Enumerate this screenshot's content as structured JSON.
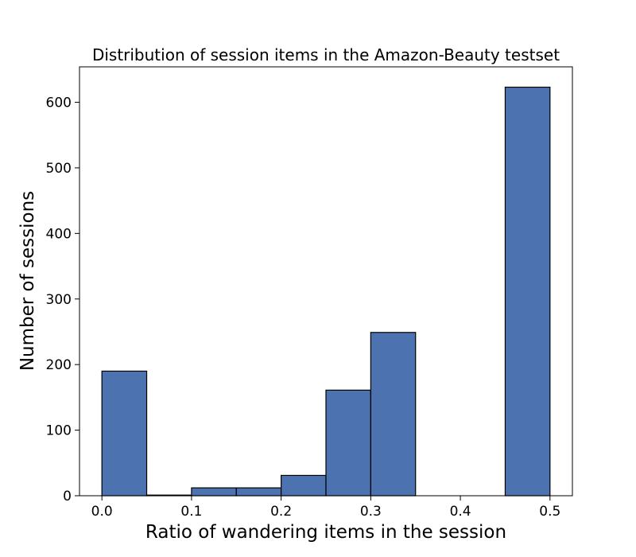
{
  "chart_data": {
    "type": "bar",
    "title": "Distribution of session items in the Amazon-Beauty testset",
    "xlabel": "Ratio of wandering items in the session",
    "ylabel": "Number of sessions",
    "bins": [
      {
        "x0": 0.0,
        "x1": 0.05,
        "value": 190
      },
      {
        "x0": 0.05,
        "x1": 0.1,
        "value": 1
      },
      {
        "x0": 0.1,
        "x1": 0.15,
        "value": 12
      },
      {
        "x0": 0.15,
        "x1": 0.2,
        "value": 12
      },
      {
        "x0": 0.2,
        "x1": 0.25,
        "value": 31
      },
      {
        "x0": 0.25,
        "x1": 0.3,
        "value": 161
      },
      {
        "x0": 0.3,
        "x1": 0.35,
        "value": 249
      },
      {
        "x0": 0.35,
        "x1": 0.4,
        "value": 0
      },
      {
        "x0": 0.4,
        "x1": 0.45,
        "value": 0
      },
      {
        "x0": 0.45,
        "x1": 0.5,
        "value": 623
      }
    ],
    "xlim": [
      -0.025,
      0.525
    ],
    "ylim": [
      0,
      654
    ],
    "xticks": [
      0.0,
      0.1,
      0.2,
      0.3,
      0.4,
      0.5
    ],
    "xtick_labels": [
      "0.0",
      "0.1",
      "0.2",
      "0.3",
      "0.4",
      "0.5"
    ],
    "yticks": [
      0,
      100,
      200,
      300,
      400,
      500,
      600
    ],
    "ytick_labels": [
      "0",
      "100",
      "200",
      "300",
      "400",
      "500",
      "600"
    ],
    "grid": false,
    "bar_color": "#4c72b0",
    "edge_color": "#000000"
  }
}
